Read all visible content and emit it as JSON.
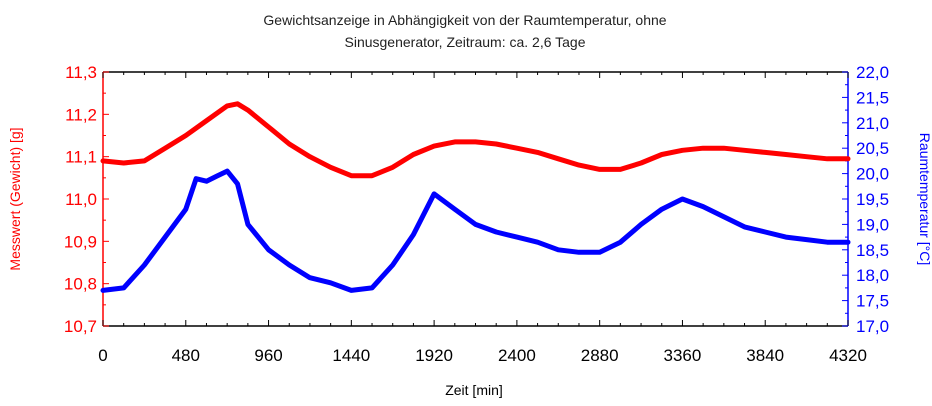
{
  "chart_data": {
    "type": "line",
    "title_line1": "Gewichtsanzeige in Abhängigkeit von der Raumtemperatur, ohne",
    "title_line2": "Sinusgenerator, Zeitraum: ca. 2,6 Tage",
    "xlabel": "Zeit [min]",
    "ylabel_left": "Messwert (Gewicht) [g]",
    "ylabel_right": "Raumtemperatur [°C]",
    "xlim": [
      0,
      4320
    ],
    "ylim_left": [
      10.7,
      11.3
    ],
    "ylim_right": [
      17.0,
      22.0
    ],
    "x_ticks": [
      "0",
      "480",
      "960",
      "1440",
      "1920",
      "2400",
      "2880",
      "3360",
      "3840",
      "4320"
    ],
    "y_left_ticks": [
      "10,7",
      "10,8",
      "10,9",
      "11,0",
      "11,1",
      "11,2",
      "11,3"
    ],
    "y_right_ticks": [
      "17,0",
      "17,5",
      "18,0",
      "18,5",
      "19,0",
      "19,5",
      "20,0",
      "20,5",
      "21,0",
      "21,5",
      "22,0"
    ],
    "grid": false,
    "colors": {
      "weight": "#ff0000",
      "temperature": "#0000ff",
      "axes": "#000000"
    },
    "series": [
      {
        "axis": "left",
        "color": "#ff0000",
        "x": [
          0,
          120,
          240,
          360,
          480,
          600,
          720,
          780,
          840,
          960,
          1080,
          1200,
          1320,
          1440,
          1560,
          1680,
          1800,
          1920,
          2040,
          2160,
          2280,
          2400,
          2520,
          2640,
          2760,
          2880,
          3000,
          3120,
          3240,
          3360,
          3480,
          3600,
          3720,
          3840,
          3960,
          4080,
          4200,
          4320
        ],
        "y": [
          11.09,
          11.085,
          11.09,
          11.12,
          11.15,
          11.185,
          11.22,
          11.225,
          11.21,
          11.17,
          11.13,
          11.1,
          11.075,
          11.055,
          11.055,
          11.075,
          11.105,
          11.125,
          11.135,
          11.135,
          11.13,
          11.12,
          11.11,
          11.095,
          11.08,
          11.07,
          11.07,
          11.085,
          11.105,
          11.115,
          11.12,
          11.12,
          11.115,
          11.11,
          11.105,
          11.1,
          11.095,
          11.095
        ]
      },
      {
        "axis": "right",
        "color": "#0000ff",
        "x": [
          0,
          120,
          240,
          360,
          480,
          540,
          600,
          660,
          720,
          780,
          840,
          960,
          1080,
          1200,
          1320,
          1440,
          1560,
          1680,
          1800,
          1920,
          2040,
          2160,
          2280,
          2400,
          2520,
          2640,
          2760,
          2880,
          3000,
          3120,
          3240,
          3360,
          3480,
          3600,
          3720,
          3840,
          3960,
          4080,
          4200,
          4320
        ],
        "y": [
          17.7,
          17.75,
          18.2,
          18.75,
          19.3,
          19.9,
          19.85,
          19.95,
          20.05,
          19.8,
          19.0,
          18.5,
          18.2,
          17.95,
          17.85,
          17.7,
          17.75,
          18.2,
          18.8,
          19.6,
          19.3,
          19.0,
          18.85,
          18.75,
          18.65,
          18.5,
          18.45,
          18.45,
          18.65,
          19.0,
          19.3,
          19.5,
          19.35,
          19.15,
          18.95,
          18.85,
          18.75,
          18.7,
          18.65,
          18.65
        ]
      }
    ]
  }
}
